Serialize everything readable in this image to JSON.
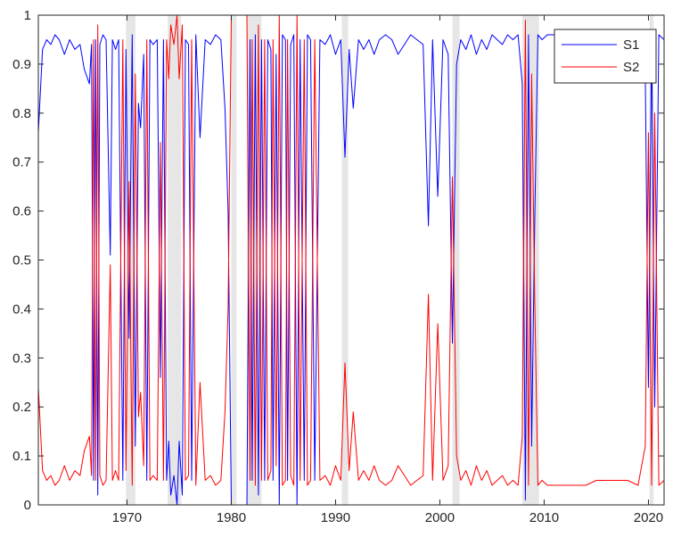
{
  "chart_data": {
    "type": "line",
    "title": "",
    "xlabel": "",
    "ylabel": "",
    "xlim": [
      1961.5,
      2021.5
    ],
    "ylim": [
      0,
      1
    ],
    "x_ticks": [
      1970,
      1980,
      1990,
      2000,
      2010,
      2020
    ],
    "y_ticks": [
      0,
      0.1,
      0.2,
      0.3,
      0.4,
      0.5,
      0.6,
      0.7,
      0.8,
      0.9,
      1
    ],
    "grid": false,
    "legend_position": "top-right",
    "shaded_periods": [
      [
        1969.9,
        1970.8
      ],
      [
        1973.9,
        1975.2
      ],
      [
        1980.0,
        1980.5
      ],
      [
        1981.5,
        1982.9
      ],
      [
        1990.6,
        1991.2
      ],
      [
        2001.2,
        2001.9
      ],
      [
        2007.9,
        2009.5
      ],
      [
        2020.1,
        2020.5
      ]
    ],
    "colors": {
      "S1": "#0000ff",
      "S2": "#ff0000",
      "shading": "#e6e6e6"
    },
    "series": [
      {
        "name": "S1",
        "x": [
          1961.5,
          1961.9,
          1962.3,
          1962.7,
          1963.1,
          1963.5,
          1964.0,
          1964.5,
          1965.0,
          1965.5,
          1965.9,
          1966.4,
          1966.6,
          1966.8,
          1967.0,
          1967.2,
          1967.4,
          1967.7,
          1968.0,
          1968.4,
          1968.6,
          1968.9,
          1969.2,
          1969.6,
          1969.9,
          1970.2,
          1970.5,
          1970.8,
          1971.1,
          1971.3,
          1971.6,
          1971.9,
          1972.2,
          1972.5,
          1972.9,
          1973.2,
          1973.5,
          1973.8,
          1974.0,
          1974.2,
          1974.5,
          1974.8,
          1975.0,
          1975.3,
          1975.6,
          1975.9,
          1976.2,
          1976.6,
          1977.0,
          1977.5,
          1978.0,
          1978.5,
          1979.0,
          1979.4,
          1979.7,
          1980.0,
          1980.5,
          1981.0,
          1981.5,
          1981.8,
          1982.0,
          1982.3,
          1982.6,
          1982.9,
          1983.2,
          1983.5,
          1983.8,
          1984.0,
          1984.3,
          1984.6,
          1984.9,
          1985.2,
          1985.4,
          1985.7,
          1986.0,
          1986.3,
          1986.6,
          1987.0,
          1987.3,
          1987.6,
          1988.0,
          1988.5,
          1989.0,
          1989.5,
          1990.0,
          1990.5,
          1990.9,
          1991.3,
          1991.7,
          1992.2,
          1992.7,
          1993.2,
          1993.7,
          1994.2,
          1994.8,
          1995.4,
          1996.0,
          1996.6,
          1997.2,
          1997.8,
          1998.4,
          1998.9,
          1999.3,
          1999.8,
          2000.3,
          2000.8,
          2001.2,
          2001.6,
          2002.0,
          2002.5,
          2003.0,
          2003.5,
          2004.0,
          2004.5,
          2005.0,
          2005.5,
          2006.0,
          2006.5,
          2007.0,
          2007.5,
          2007.9,
          2008.2,
          2008.5,
          2008.8,
          2009.1,
          2009.4,
          2009.8,
          2010.3,
          2011.0,
          2012.0,
          2013.0,
          2014.0,
          2015.0,
          2016.0,
          2017.0,
          2018.0,
          2019.0,
          2019.7,
          2020.0,
          2020.3,
          2020.6,
          2021.0,
          2021.5
        ],
        "y": [
          0.76,
          0.93,
          0.95,
          0.94,
          0.96,
          0.95,
          0.92,
          0.95,
          0.93,
          0.94,
          0.89,
          0.86,
          0.94,
          0.05,
          0.95,
          0.02,
          0.94,
          0.96,
          0.95,
          0.51,
          0.95,
          0.93,
          0.95,
          0.05,
          0.93,
          0.34,
          0.96,
          0.12,
          0.82,
          0.77,
          0.92,
          0.05,
          0.95,
          0.94,
          0.95,
          0.26,
          0.95,
          0.05,
          0.13,
          0.02,
          0.06,
          0.0,
          0.13,
          0.02,
          0.95,
          0.94,
          0.05,
          0.96,
          0.75,
          0.95,
          0.94,
          0.96,
          0.95,
          0.81,
          0.6,
          0.0,
          0.0,
          0.0,
          0.0,
          0.95,
          0.05,
          0.96,
          0.02,
          0.95,
          0.05,
          0.95,
          0.93,
          0.05,
          0.92,
          0.0,
          0.96,
          0.95,
          0.05,
          0.94,
          0.96,
          0.0,
          0.95,
          0.05,
          0.96,
          0.95,
          0.05,
          0.95,
          0.94,
          0.96,
          0.92,
          0.95,
          0.71,
          0.93,
          0.81,
          0.95,
          0.93,
          0.95,
          0.92,
          0.95,
          0.96,
          0.95,
          0.92,
          0.94,
          0.96,
          0.95,
          0.94,
          0.57,
          0.95,
          0.63,
          0.95,
          0.92,
          0.33,
          0.9,
          0.95,
          0.93,
          0.96,
          0.92,
          0.95,
          0.93,
          0.96,
          0.95,
          0.94,
          0.96,
          0.95,
          0.96,
          0.86,
          0.01,
          0.96,
          0.12,
          0.58,
          0.96,
          0.95,
          0.96,
          0.96,
          0.96,
          0.96,
          0.96,
          0.96,
          0.96,
          0.96,
          0.96,
          0.96,
          0.88,
          0.24,
          0.96,
          0.2,
          0.96,
          0.95
        ]
      },
      {
        "name": "S2",
        "x": [
          1961.5,
          1961.9,
          1962.3,
          1962.7,
          1963.1,
          1963.5,
          1964.0,
          1964.5,
          1965.0,
          1965.5,
          1965.9,
          1966.4,
          1966.6,
          1966.8,
          1967.0,
          1967.2,
          1967.4,
          1967.7,
          1968.0,
          1968.4,
          1968.6,
          1968.9,
          1969.2,
          1969.6,
          1969.9,
          1970.2,
          1970.5,
          1970.8,
          1971.1,
          1971.3,
          1971.6,
          1971.9,
          1972.2,
          1972.5,
          1972.9,
          1973.2,
          1973.5,
          1973.8,
          1974.0,
          1974.2,
          1974.5,
          1974.8,
          1975.0,
          1975.3,
          1975.6,
          1975.9,
          1976.2,
          1976.6,
          1977.0,
          1977.5,
          1978.0,
          1978.5,
          1979.0,
          1979.4,
          1979.7,
          1980.0,
          1980.5,
          1981.0,
          1981.5,
          1981.8,
          1982.0,
          1982.3,
          1982.6,
          1982.9,
          1983.2,
          1983.5,
          1983.8,
          1984.0,
          1984.3,
          1984.6,
          1984.9,
          1985.2,
          1985.4,
          1985.7,
          1986.0,
          1986.3,
          1986.6,
          1987.0,
          1987.3,
          1987.6,
          1988.0,
          1988.5,
          1989.0,
          1989.5,
          1990.0,
          1990.5,
          1990.9,
          1991.3,
          1991.7,
          1992.2,
          1992.7,
          1993.2,
          1993.7,
          1994.2,
          1994.8,
          1995.4,
          1996.0,
          1996.6,
          1997.2,
          1997.8,
          1998.4,
          1998.9,
          1999.3,
          1999.8,
          2000.3,
          2000.8,
          2001.2,
          2001.6,
          2002.0,
          2002.5,
          2003.0,
          2003.5,
          2004.0,
          2004.5,
          2005.0,
          2005.5,
          2006.0,
          2006.5,
          2007.0,
          2007.5,
          2007.9,
          2008.2,
          2008.5,
          2008.8,
          2009.1,
          2009.4,
          2009.8,
          2010.3,
          2011.0,
          2012.0,
          2013.0,
          2014.0,
          2015.0,
          2016.0,
          2017.0,
          2018.0,
          2019.0,
          2019.7,
          2020.0,
          2020.3,
          2020.6,
          2021.0,
          2021.5
        ],
        "y": [
          0.24,
          0.07,
          0.05,
          0.06,
          0.04,
          0.05,
          0.08,
          0.05,
          0.07,
          0.06,
          0.11,
          0.14,
          0.06,
          0.95,
          0.05,
          0.98,
          0.06,
          0.04,
          0.05,
          0.49,
          0.05,
          0.07,
          0.05,
          0.95,
          0.07,
          0.66,
          0.04,
          0.88,
          0.18,
          0.23,
          0.08,
          0.95,
          0.05,
          0.06,
          0.05,
          0.74,
          0.05,
          0.95,
          0.87,
          0.98,
          0.94,
          1.0,
          0.87,
          0.98,
          0.05,
          0.06,
          0.95,
          0.04,
          0.25,
          0.05,
          0.06,
          0.04,
          0.05,
          0.19,
          0.4,
          1.0,
          1.0,
          1.0,
          1.0,
          0.05,
          0.95,
          0.04,
          0.98,
          0.05,
          0.95,
          0.05,
          0.07,
          0.95,
          0.08,
          1.0,
          0.04,
          0.05,
          0.95,
          0.06,
          0.04,
          1.0,
          0.05,
          0.95,
          0.04,
          0.05,
          0.95,
          0.05,
          0.06,
          0.04,
          0.08,
          0.05,
          0.29,
          0.07,
          0.19,
          0.05,
          0.07,
          0.05,
          0.08,
          0.05,
          0.04,
          0.05,
          0.08,
          0.06,
          0.04,
          0.05,
          0.06,
          0.43,
          0.05,
          0.37,
          0.05,
          0.08,
          0.67,
          0.1,
          0.05,
          0.07,
          0.04,
          0.08,
          0.05,
          0.07,
          0.04,
          0.05,
          0.06,
          0.04,
          0.05,
          0.04,
          0.14,
          0.99,
          0.04,
          0.88,
          0.42,
          0.04,
          0.05,
          0.04,
          0.04,
          0.04,
          0.04,
          0.04,
          0.05,
          0.05,
          0.05,
          0.05,
          0.04,
          0.12,
          0.76,
          0.04,
          0.8,
          0.04,
          0.05
        ]
      }
    ]
  }
}
